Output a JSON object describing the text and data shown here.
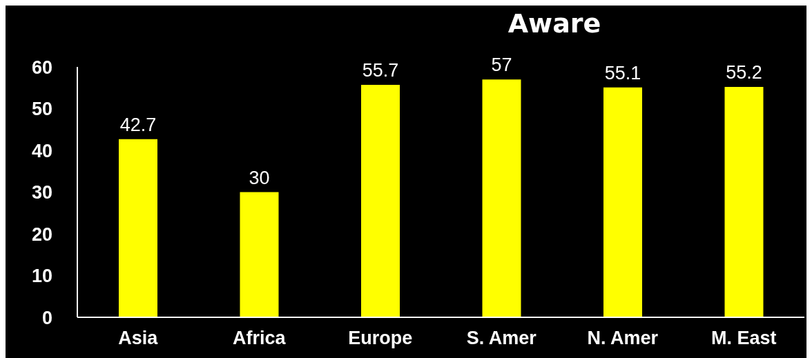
{
  "chart_data": {
    "type": "bar",
    "title": "Aware",
    "categories": [
      "Asia",
      "Africa",
      "Europe",
      "S. Amer",
      "N. Amer",
      "M. East"
    ],
    "values": [
      42.7,
      30,
      55.7,
      57,
      55.1,
      55.2
    ],
    "color": "#ffff00",
    "ylim": [
      0,
      60
    ],
    "yticks": [
      0,
      10,
      20,
      30,
      40,
      50,
      60
    ],
    "grid": false,
    "data_labels": true
  }
}
